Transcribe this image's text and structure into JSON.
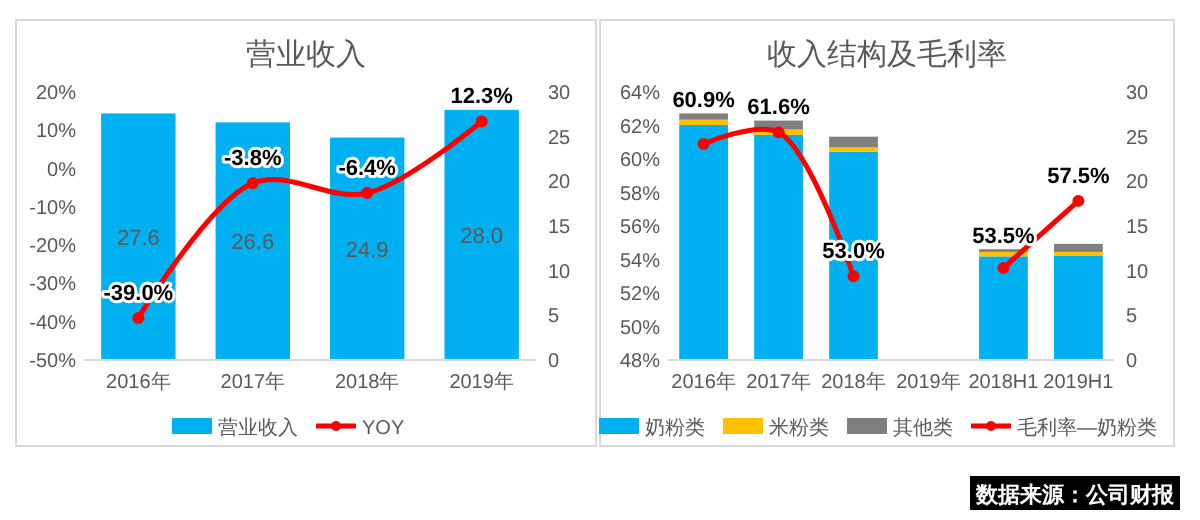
{
  "chart_data": [
    {
      "type": "bar",
      "title": "营业收入",
      "categories": [
        "2016年",
        "2017年",
        "2018年",
        "2019年"
      ],
      "series": [
        {
          "name": "营业收入",
          "axis": "y2",
          "color": "#00b0f0",
          "values": [
            27.6,
            26.6,
            24.9,
            28.0
          ],
          "value_labels": [
            "27.6",
            "26.6",
            "24.9",
            "28.0"
          ]
        },
        {
          "name": "YOY",
          "type": "line",
          "color": "#ff0000",
          "values": [
            -39.0,
            -3.8,
            -6.4,
            12.3
          ],
          "value_labels": [
            "-39.0%",
            "-3.8%",
            "-6.4%",
            "12.3%"
          ]
        }
      ],
      "ylim": [
        -50,
        20
      ],
      "yticks": [
        {
          "value": -50,
          "label": "-50%"
        },
        {
          "value": -40,
          "label": "-40%"
        },
        {
          "value": -30,
          "label": "-30%"
        },
        {
          "value": -20,
          "label": "-20%"
        },
        {
          "value": -10,
          "label": "-10%"
        },
        {
          "value": 0,
          "label": "0%"
        },
        {
          "value": 10,
          "label": "10%"
        },
        {
          "value": 20,
          "label": "20%"
        }
      ],
      "y2lim": [
        0,
        30
      ],
      "y2ticks": [
        0,
        5,
        10,
        15,
        20,
        25,
        30
      ],
      "legend": "bottom",
      "marker": "circle"
    },
    {
      "type": "bar",
      "title": "收入结构及毛利率",
      "categories": [
        "2016年",
        "2017年",
        "2018年",
        "2019年",
        "2018H1",
        "2019H1"
      ],
      "stacked": true,
      "series": [
        {
          "name": "奶粉类",
          "axis": "y2",
          "color": "#00b0f0",
          "values": [
            26.3,
            25.2,
            23.3,
            null,
            11.6,
            11.7
          ]
        },
        {
          "name": "米粉类",
          "axis": "y2",
          "color": "#ffc000",
          "values": [
            0.6,
            0.6,
            0.5,
            null,
            0.5,
            0.4
          ]
        },
        {
          "name": "其他类",
          "axis": "y2",
          "color": "#7f7f7f",
          "values": [
            0.7,
            1.0,
            1.2,
            null,
            0.3,
            0.9
          ]
        },
        {
          "name": "毛利率—奶粉类",
          "type": "line",
          "color": "#ff0000",
          "values": [
            60.9,
            61.6,
            53.0,
            null,
            53.5,
            57.5
          ],
          "value_labels": [
            "60.9%",
            "61.6%",
            "53.0%",
            null,
            "53.5%",
            "57.5%"
          ]
        }
      ],
      "ylim": [
        48,
        64
      ],
      "yticks": [
        {
          "value": 48,
          "label": "48%"
        },
        {
          "value": 50,
          "label": "50%"
        },
        {
          "value": 52,
          "label": "52%"
        },
        {
          "value": 54,
          "label": "54%"
        },
        {
          "value": 56,
          "label": "56%"
        },
        {
          "value": 58,
          "label": "58%"
        },
        {
          "value": 60,
          "label": "60%"
        },
        {
          "value": 62,
          "label": "62%"
        },
        {
          "value": 64,
          "label": "64%"
        }
      ],
      "y2lim": [
        0,
        30
      ],
      "y2ticks": [
        0,
        5,
        10,
        15,
        20,
        25,
        30
      ],
      "legend": "bottom",
      "marker": "circle",
      "annotations": [
        "数据来源：公司财报"
      ]
    }
  ]
}
